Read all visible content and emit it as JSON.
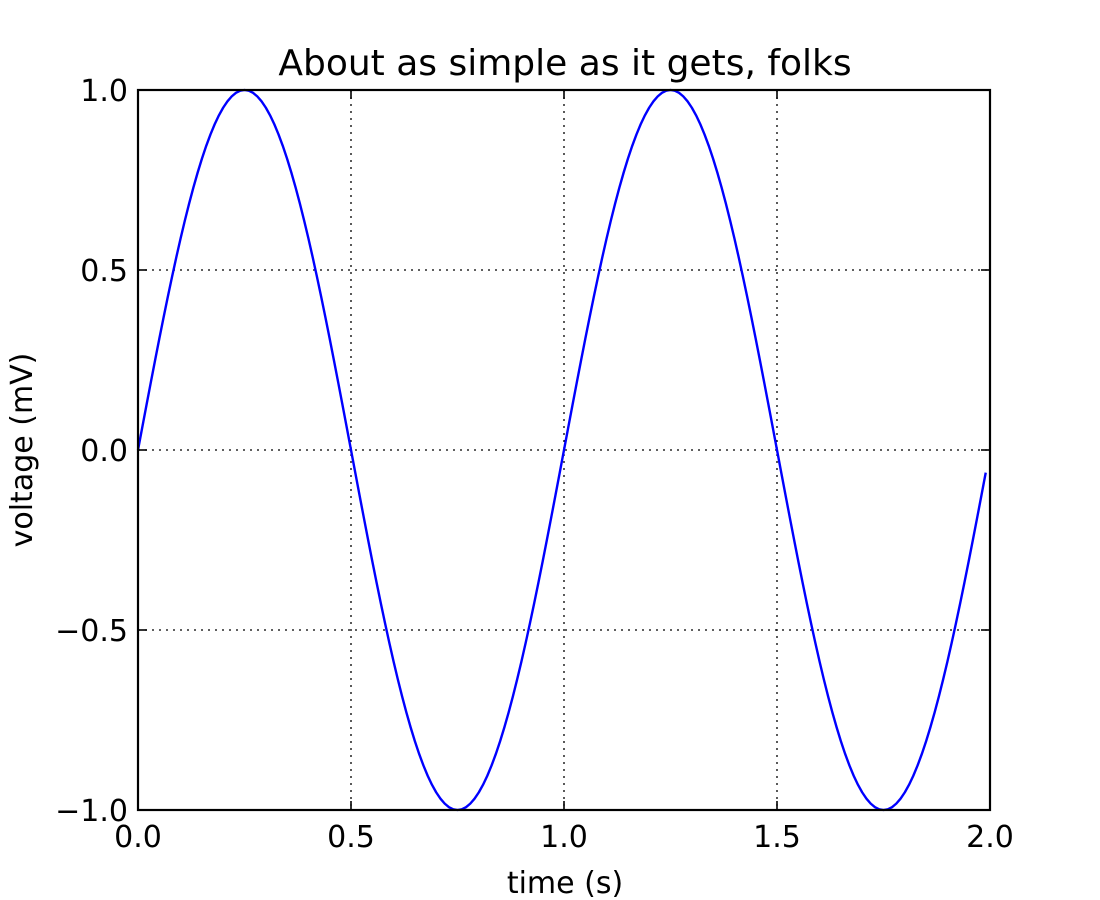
{
  "chart_data": {
    "type": "line",
    "title": "About as simple as it gets, folks",
    "xlabel": "time (s)",
    "ylabel": "voltage (mV)",
    "xlim": [
      0.0,
      2.0
    ],
    "ylim": [
      -1.0,
      1.0
    ],
    "xticks": [
      0.0,
      0.5,
      1.0,
      1.5,
      2.0
    ],
    "xtick_labels": [
      "0.0",
      "0.5",
      "1.0",
      "1.5",
      "2.0"
    ],
    "yticks": [
      -1.0,
      -0.5,
      0.0,
      0.5,
      1.0
    ],
    "ytick_labels": [
      "−1.0",
      "−0.5",
      "0.0",
      "0.5",
      "1.0"
    ],
    "grid": true,
    "series": [
      {
        "color": "#0000ff",
        "function": "sin(2*pi*t)",
        "x_start": 0.0,
        "x_end": 1.99,
        "x_step": 0.01
      }
    ]
  }
}
